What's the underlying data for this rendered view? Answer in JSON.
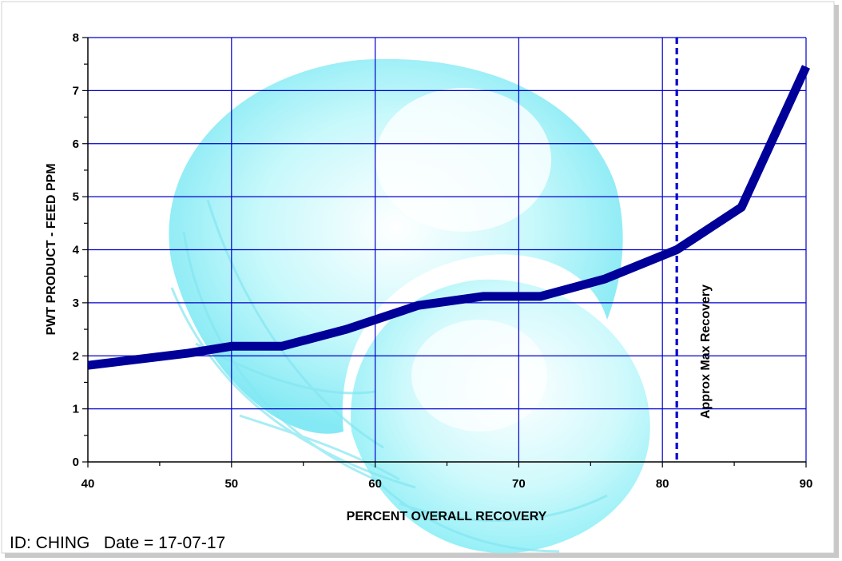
{
  "chart_data": {
    "type": "line",
    "xlabel": "PERCENT OVERALL RECOVERY",
    "ylabel": "PWT PRODUCT - FEED PPM",
    "xlim": [
      40,
      90
    ],
    "ylim": [
      0,
      8
    ],
    "x_ticks": [
      40,
      50,
      60,
      70,
      80,
      90
    ],
    "y_ticks": [
      0,
      1,
      2,
      3,
      4,
      5,
      6,
      7,
      8
    ],
    "grid": true,
    "series": [
      {
        "color": "#000099",
        "x": [
          40,
          47,
          50,
          53.5,
          58,
          63,
          67.5,
          71.5,
          76,
          81,
          85.5,
          90
        ],
        "y": [
          1.82,
          2.05,
          2.18,
          2.18,
          2.5,
          2.95,
          3.12,
          3.12,
          3.45,
          4.0,
          4.8,
          7.45
        ]
      }
    ],
    "annotations": [
      {
        "type": "vline",
        "x": 81,
        "style": "dashed",
        "color": "#0000cc",
        "label": "Approx Max Recovery"
      }
    ]
  },
  "footer": {
    "id_text": "ID: CHING",
    "date_text": "Date = 17-07-17"
  },
  "colors": {
    "grid": "#0000cc",
    "series": "#000099",
    "background_art": "#7ef0f8"
  }
}
